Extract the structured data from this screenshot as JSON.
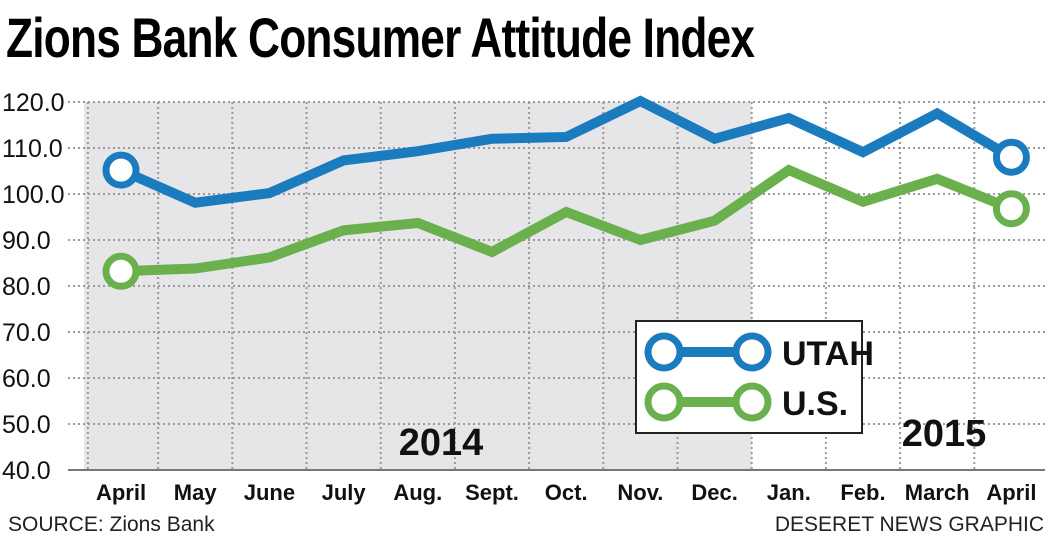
{
  "title": "Zions Bank Consumer Attitude Index",
  "source": "SOURCE: Zions Bank",
  "credit": "DESERET NEWS GRAPHIC",
  "colors": {
    "utah": "#1a7cbf",
    "us": "#6ab04c",
    "shade": "#e6e6e8",
    "grid": "#9a9a9a"
  },
  "chart_data": {
    "type": "line",
    "title": "Zions Bank Consumer Attitude Index",
    "categories": [
      "April",
      "May",
      "June",
      "July",
      "Aug.",
      "Sept.",
      "Oct.",
      "Nov.",
      "Dec.",
      "Jan.",
      "Feb.",
      "March",
      "April"
    ],
    "year_labels": [
      "2014",
      "2015"
    ],
    "shaded_range": [
      "April",
      "Dec."
    ],
    "ylim": [
      40,
      120
    ],
    "yticks": [
      "120.0",
      "110.0",
      "100.0",
      "90.0",
      "80.0",
      "70.0",
      "60.0",
      "50.0",
      "40.0"
    ],
    "grid": true,
    "legend_position": "bottom-right",
    "series": [
      {
        "name": "UTAH",
        "color": "#1a7cbf",
        "values": [
          105.2,
          98.1,
          100.2,
          107.3,
          109.3,
          112.0,
          112.4,
          120.2,
          112.0,
          116.5,
          109.1,
          117.5,
          108.0
        ]
      },
      {
        "name": "U.S.",
        "color": "#6ab04c",
        "values": [
          83.2,
          83.8,
          86.2,
          92.1,
          93.7,
          87.4,
          96.1,
          90.0,
          94.2,
          105.2,
          98.3,
          103.3,
          96.8
        ]
      }
    ]
  }
}
